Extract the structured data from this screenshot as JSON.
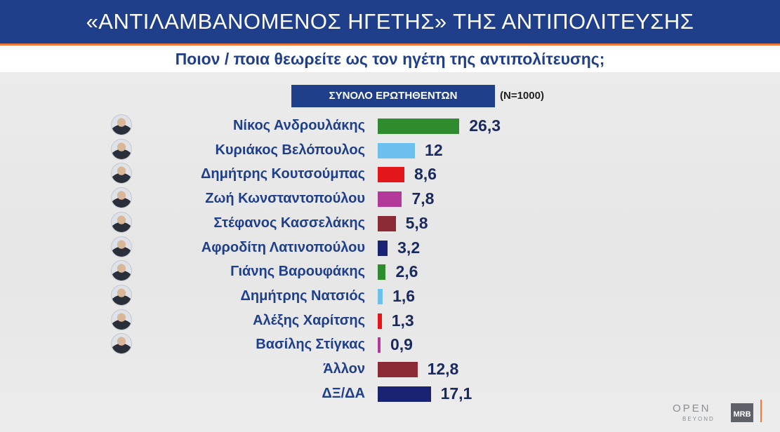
{
  "header": {
    "title": "«ΑΝΤΙΛΑΜΒΑΝΟΜΕΝΟΣ ΗΓΕΤΗΣ» ΤΗΣ ΑΝΤΙΠΟΛΙΤΕΥΣΗΣ",
    "question": "Ποιον / ποια θεωρείτε ως τον ηγέτη της αντιπολίτευσης;"
  },
  "chart_data": {
    "type": "bar",
    "orientation": "horizontal",
    "series_label": "ΣΥΝΟΛΟ ΕΡΩΤΗΘΕΝΤΩΝ",
    "sample_label": "(Ν=1000)",
    "categories": [
      "Νίκος Ανδρουλάκης",
      "Κυριάκος Βελόπουλος",
      "Δημήτρης Κουτσούμπας",
      "Ζωή Κωνσταντοπούλου",
      "Στέφανος Κασσελάκης",
      "Αφροδίτη Λατινοπούλου",
      "Γιάνης Βαρουφάκης",
      "Δημήτρης Νατσιός",
      "Αλέξης Χαρίτσης",
      "Βασίλης Στίγκας",
      "Άλλον",
      "ΔΞ/ΔΑ"
    ],
    "values": [
      26.3,
      12,
      8.6,
      7.8,
      5.8,
      3.2,
      2.6,
      1.6,
      1.3,
      0.9,
      12.8,
      17.1
    ],
    "value_labels": [
      "26,3",
      "12",
      "8,6",
      "7,8",
      "5,8",
      "3,2",
      "2,6",
      "1,6",
      "1,3",
      "0,9",
      "12,8",
      "17,1"
    ],
    "colors": [
      "#2e8b2e",
      "#6cc0ee",
      "#e3171b",
      "#b2399a",
      "#8c2a35",
      "#1a2273",
      "#2e8b2e",
      "#6cc0ee",
      "#e3171b",
      "#b2399a",
      "#8c2a35",
      "#1a2273"
    ],
    "has_photo": [
      true,
      true,
      true,
      true,
      true,
      true,
      true,
      true,
      true,
      true,
      false,
      false
    ],
    "grid": false,
    "legend": "none"
  },
  "branding": {
    "channel_logo": "OPEN",
    "channel_tagline": "BEYOND",
    "pollster_logo": "MRB"
  }
}
